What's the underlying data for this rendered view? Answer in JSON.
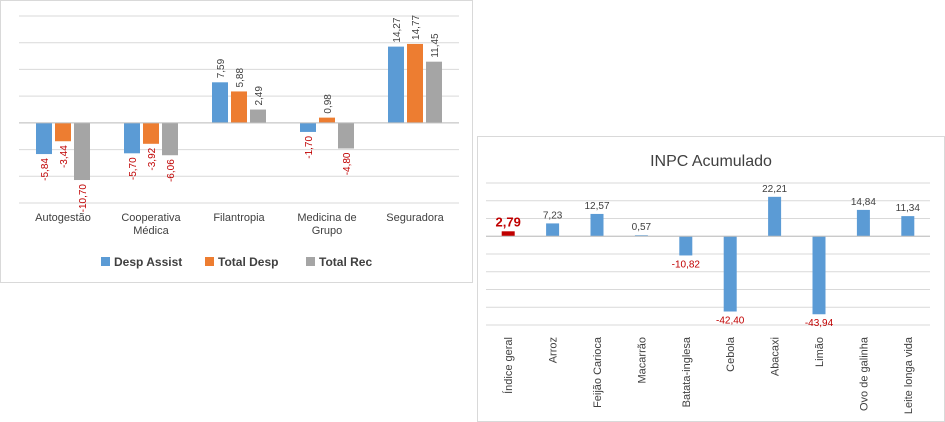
{
  "chart_data": [
    {
      "type": "bar",
      "categories": [
        [
          "Autogestão"
        ],
        [
          "Cooperativa",
          "Médica"
        ],
        [
          "Filantropia"
        ],
        [
          "Medicina de",
          "Grupo"
        ],
        [
          "Seguradora"
        ]
      ],
      "series": [
        {
          "name": "Desp Assist",
          "color": "#5b9bd5",
          "values": [
            -5.84,
            -5.7,
            7.59,
            -1.7,
            14.27
          ],
          "labels": [
            "-5,84",
            "-5,70",
            "7,59",
            "-1,70",
            "14,27"
          ]
        },
        {
          "name": "Total Desp",
          "color": "#ed7d31",
          "values": [
            -3.44,
            -3.92,
            5.88,
            0.98,
            14.77
          ],
          "labels": [
            "-3,44",
            "-3,92",
            "5,88",
            "0,98",
            "14,77"
          ]
        },
        {
          "name": "Total Rec",
          "color": "#a5a5a5",
          "values": [
            -10.7,
            -6.06,
            2.49,
            -4.8,
            11.45
          ],
          "labels": [
            "-10,70",
            "-6,06",
            "2,49",
            "-4,80",
            "11,45"
          ]
        }
      ],
      "ylim": [
        -15,
        20
      ],
      "grid": true,
      "legend": "bottom",
      "negative_label_color": "#c00000"
    },
    {
      "type": "bar",
      "title": "INPC Acumulado",
      "categories": [
        "Índice geral",
        "Arroz",
        "Feijão Carioca",
        "Macarrão",
        "Batata-inglesa",
        "Cebola",
        "Abacaxi",
        "Limão",
        "Ovo de galinha",
        "Leite longa vida"
      ],
      "values": [
        2.79,
        7.23,
        12.57,
        0.57,
        -10.82,
        -42.4,
        22.21,
        -43.94,
        14.84,
        11.34
      ],
      "labels": [
        "2,79",
        "7,23",
        "12,57",
        "0,57",
        "-10,82",
        "-42,40",
        "22,21",
        "-43,94",
        "14,84",
        "11,34"
      ],
      "colors": [
        "#c00000",
        "#5b9bd5",
        "#5b9bd5",
        "#5b9bd5",
        "#5b9bd5",
        "#5b9bd5",
        "#5b9bd5",
        "#5b9bd5",
        "#5b9bd5",
        "#5b9bd5"
      ],
      "highlight_index": 0,
      "ylim": [
        -50,
        30
      ],
      "grid": true,
      "negative_label_color": "#c00000"
    }
  ]
}
